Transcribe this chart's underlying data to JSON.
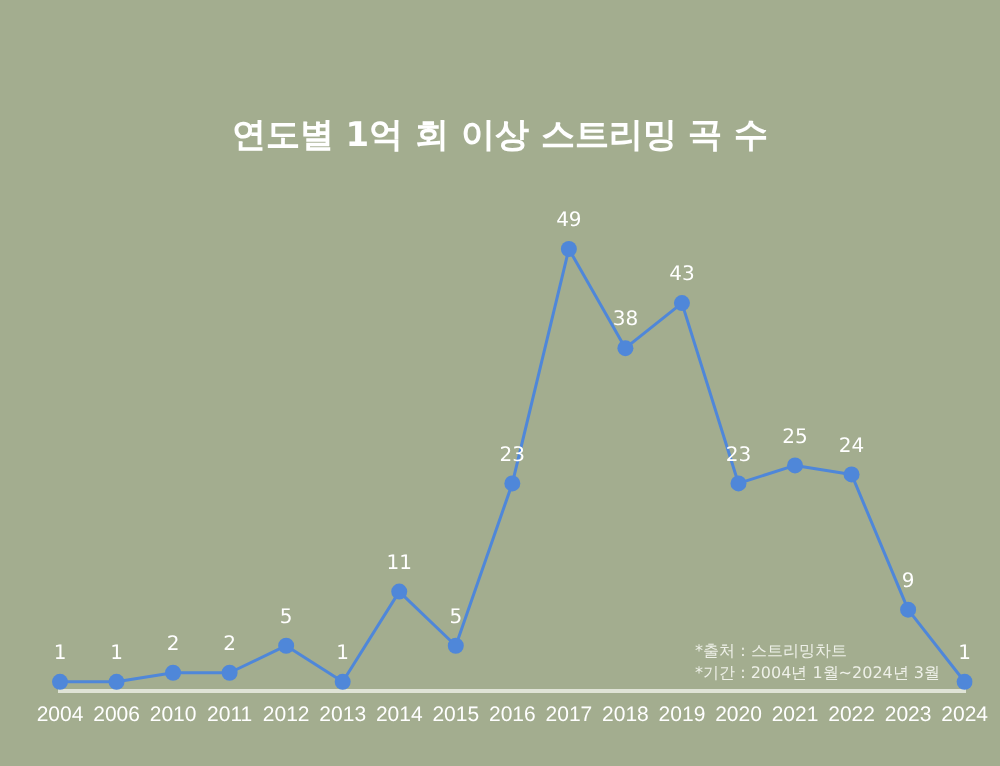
{
  "chart_data": {
    "type": "line",
    "title": "연도별 1억 회 이상 스트리밍 곡 수",
    "categories": [
      "2004",
      "2006",
      "2010",
      "2011",
      "2012",
      "2013",
      "2014",
      "2015",
      "2016",
      "2017",
      "2018",
      "2019",
      "2020",
      "2021",
      "2022",
      "2023",
      "2024"
    ],
    "series": [
      {
        "color": "#4f87d9",
        "values": [
          1,
          1,
          2,
          2,
          5,
          1,
          11,
          5,
          23,
          49,
          38,
          43,
          23,
          25,
          24,
          9,
          1
        ]
      }
    ],
    "data_labels": true,
    "marker": "circle",
    "legend": false,
    "grid": false,
    "tick_labels": "x",
    "annotations": [
      "*출처 : 스트리밍차트",
      "*기간 : 2004년 1월~2024년 3월"
    ]
  }
}
